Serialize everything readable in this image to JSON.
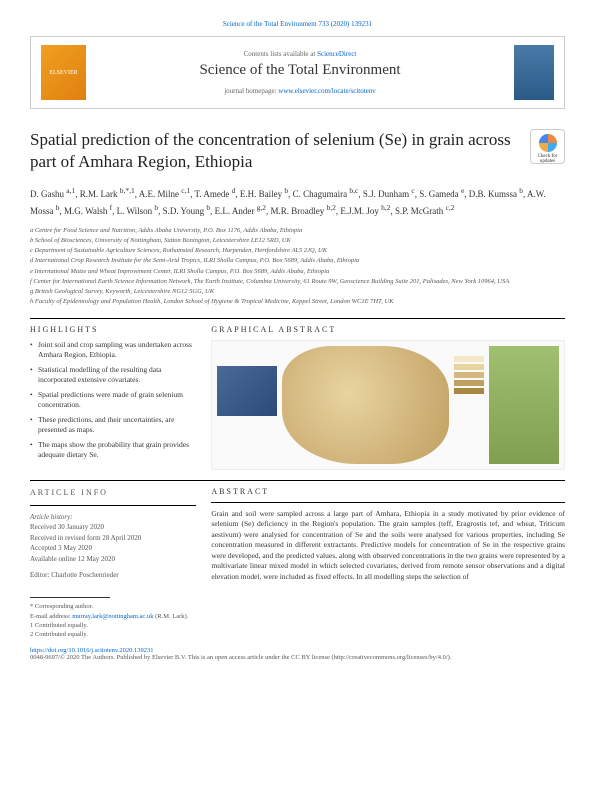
{
  "header": {
    "citation": "Science of the Total Environment 733 (2020) 139231",
    "contents_prefix": "Contents lists available at ",
    "contents_link": "ScienceDirect",
    "journal_title": "Science of the Total Environment",
    "homepage_prefix": "journal homepage: ",
    "homepage_url": "www.elsevier.com/locate/scitotenv",
    "publisher": "ELSEVIER"
  },
  "check_badge": "Check for updates",
  "title": "Spatial prediction of the concentration of selenium (Se) in grain across part of Amhara Region, Ethiopia",
  "authors_html": "D. Gashu <sup>a,1</sup>, R.M. Lark <sup>b,*,1</sup>, A.E. Milne <sup>c,1</sup>, T. Amede <sup>d</sup>, E.H. Bailey <sup>b</sup>, C. Chagumaira <sup>b,c</sup>, S.J. Dunham <sup>c</sup>, S. Gameda <sup>e</sup>, D.B. Kumssa <sup>b</sup>, A.W. Mossa <sup>b</sup>, M.G. Walsh <sup>f</sup>, L. Wilson <sup>b</sup>, S.D. Young <sup>b</sup>, E.L. Ander <sup>g,2</sup>, M.R. Broadley <sup>b,2</sup>, E.J.M. Joy <sup>h,2</sup>, S.P. McGrath <sup>c,2</sup>",
  "affiliations": [
    "a Centre for Food Science and Nutrition, Addis Ababa University, P.O. Box 1176, Addis Ababa, Ethiopia",
    "b School of Biosciences, University of Nottingham, Sutton Bonington, Leicestershire LE12 5RD, UK",
    "c Department of Sustainable Agriculture Sciences, Rothamsted Research, Harpenden, Hertfordshire AL5 2JQ, UK",
    "d International Crop Research Institute for the Semi-Arid Tropics, ILRI Sholla Campus, P.O. Box 5689, Addis Ababa, Ethiopia",
    "e International Maize and Wheat Improvement Center, ILRI Sholla Campus, P.O. Box 5689, Addis Ababa, Ethiopia",
    "f Center for International Earth Science Information Network, The Earth Institute, Columbia University, 61 Route 9W, Geoscience Building Suite 201, Palisades, New York 10964, USA",
    "g British Geological Survey, Keyworth, Leicestershire NG12 5GG, UK",
    "h Faculty of Epidemiology and Population Health, London School of Hygiene & Tropical Medicine, Keppel Street, London WC1E 7HT, UK"
  ],
  "highlights": {
    "heading": "HIGHLIGHTS",
    "items": [
      "Joint soil and crop sampling was undertaken across Amhara Region, Ethiopia.",
      "Statistical modelling of the resulting data incorporated extensive covariates.",
      "Spatial predictions were made of grain selenium concentration.",
      "These predictions, and their uncertainties, are presented as maps.",
      "The maps show the probability that grain provides adequate dietary Se."
    ]
  },
  "graphical_abstract_heading": "GRAPHICAL ABSTRACT",
  "article_info": {
    "heading": "ARTICLE INFO",
    "history_label": "Article history:",
    "received": "Received 30 January 2020",
    "revised": "Received in revised form 28 April 2020",
    "accepted": "Accepted 3 May 2020",
    "online": "Available online 12 May 2020",
    "editor_label": "Editor: Charlotte Poschenrieder"
  },
  "abstract": {
    "heading": "ABSTRACT",
    "text": "Grain and soil were sampled across a large part of Amhara, Ethiopia in a study motivated by prior evidence of selenium (Se) deficiency in the Region's population. The grain samples (teff, Eragrostis tef, and wheat, Triticum aestivum) were analysed for concentration of Se and the soils were analysed for various properties, including Se concentration measured in different extractants. Predictive models for concentration of Se in the respective grains were developed, and the predicted values, along with observed concentrations in the two grains were represented by a multivariate linear mixed model in which selected covariates, derived from remote sensor observations and a digital elevation model, were included as fixed effects. In all modelling steps the selection of"
  },
  "footer": {
    "corresponding": "* Corresponding author.",
    "email_label": "E-mail address: ",
    "email": "murray.lark@nottingham.ac.uk",
    "email_name": " (R.M. Lark).",
    "contrib1": "1 Contributed equally.",
    "contrib2": "2 Contributed equally.",
    "doi_url": "https://doi.org/10.1016/j.scitotenv.2020.139231",
    "issn": "0048-9697/© 2020 The Authors. Published by Elsevier B.V. This is an open access article under the CC BY license (",
    "cc_url": "http://creativecommons.org/licenses/by/4.0/",
    "cc_close": ")."
  },
  "ga_legend_colors": [
    "#f4e8c8",
    "#e8d4a0",
    "#d4b880",
    "#c0a060",
    "#a88840"
  ]
}
